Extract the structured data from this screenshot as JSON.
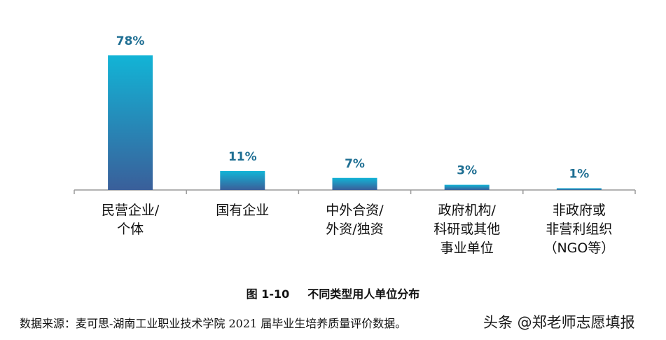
{
  "chart_data": {
    "type": "bar",
    "categories": [
      [
        "民营企业/",
        "个体"
      ],
      [
        "国有企业"
      ],
      [
        "中外合资/",
        "外资/独资"
      ],
      [
        "政府机构/",
        "科研或其他",
        "事业单位"
      ],
      [
        "非政府或",
        "非营利组织",
        "（NGO等）"
      ]
    ],
    "values": [
      78,
      11,
      7,
      3,
      1
    ],
    "data_labels": [
      "78%",
      "11%",
      "7%",
      "3%",
      "1%"
    ],
    "ylim": [
      0,
      80
    ],
    "grid": false,
    "colors": {
      "bar_top": "#12b4d6",
      "bar_bottom": "#3a5f9a",
      "label": "#1f6f93",
      "axis": "#9a9a9a"
    }
  },
  "caption": {
    "number": "图 1-10",
    "text": "不同类型用人单位分布"
  },
  "source": "数据来源：麦可思-湖南工业职业技术学院 2021 届毕业生培养质量评价数据。",
  "watermark": "头条 @郑老师志愿填报"
}
